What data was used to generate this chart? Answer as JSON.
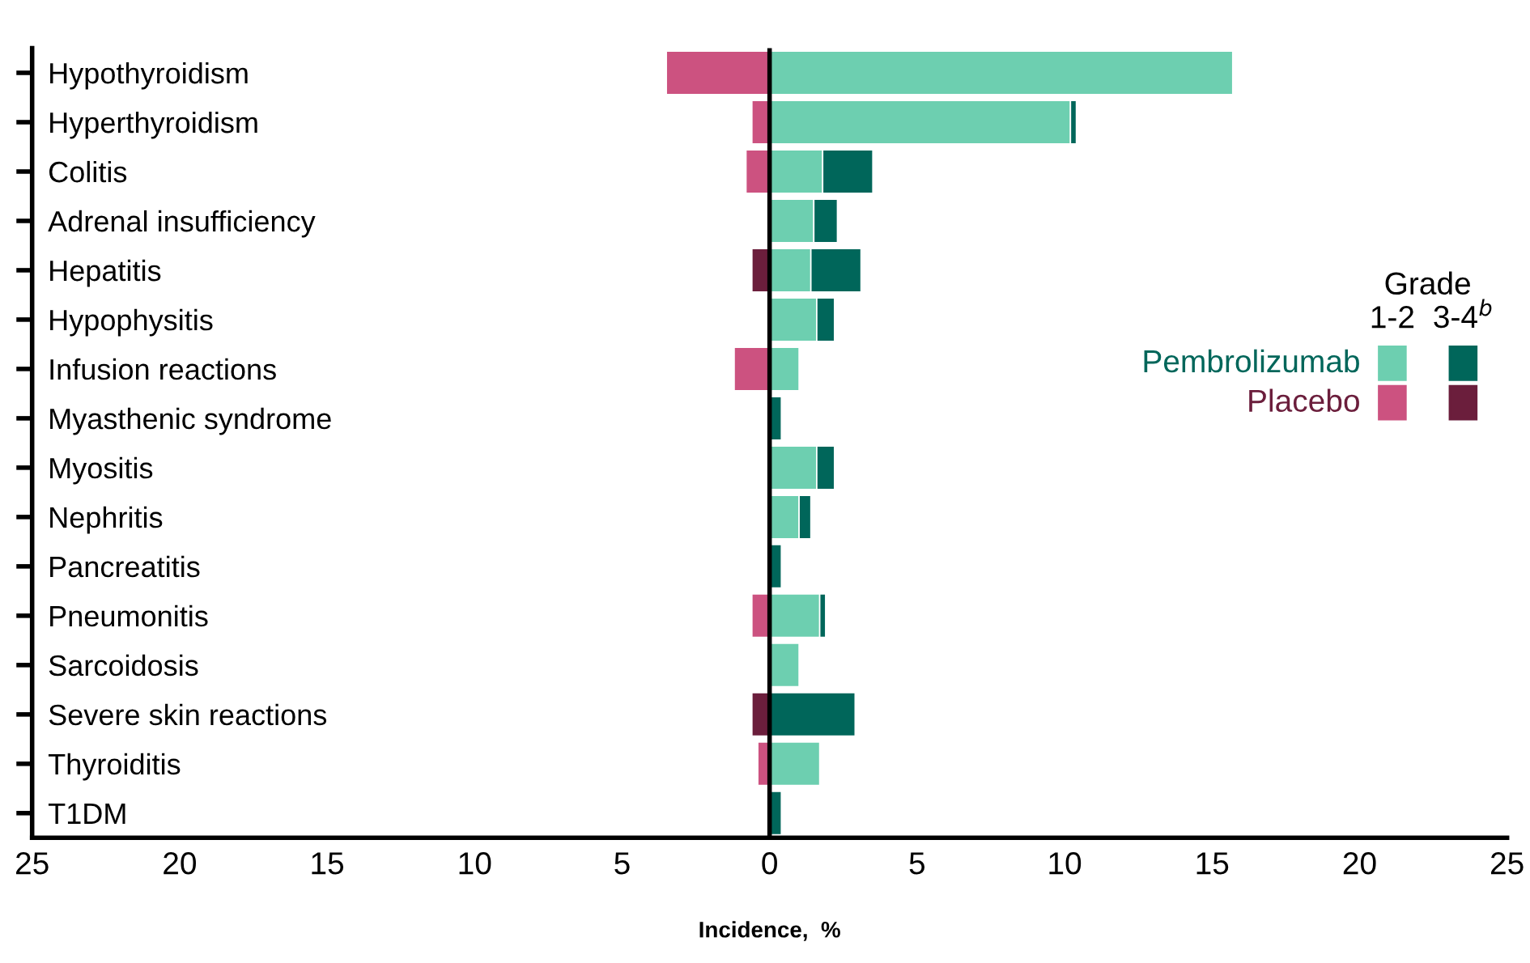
{
  "chart_data": {
    "type": "bar",
    "orientation": "horizontal",
    "stacked": true,
    "categories": [
      "Hypothyroidism",
      "Hyperthyroidism",
      "Colitis",
      "Adrenal insufficiency",
      "Hepatitis",
      "Hypophysitis",
      "Infusion reactions",
      "Myasthenic syndrome",
      "Myositis",
      "Nephritis",
      "Pancreatitis",
      "Pneumonitis",
      "Sarcoidosis",
      "Severe skin reactions",
      "Thyroiditis",
      "T1DM"
    ],
    "series": [
      {
        "name": "Pembrolizumab",
        "color": "#6dcfb0",
        "values": [
          15.7,
          10.2,
          1.8,
          1.5,
          1.4,
          1.6,
          1.0,
          null,
          1.6,
          1.0,
          null,
          1.7,
          1.0,
          null,
          1.7,
          null
        ]
      },
      {
        "color": "#00665a",
        "values": [
          null,
          0.2,
          1.7,
          0.8,
          1.7,
          0.6,
          null,
          0.4,
          0.6,
          0.4,
          0.4,
          0.2,
          null,
          2.9,
          null,
          0.4
        ]
      },
      {
        "name": "Placebo",
        "color": "#cc5280",
        "values": [
          -3.5,
          -0.6,
          -0.8,
          null,
          null,
          null,
          -1.2,
          null,
          null,
          null,
          null,
          -0.6,
          null,
          null,
          -0.4,
          null
        ]
      },
      {
        "color": "#6b1e3c",
        "values": [
          null,
          null,
          null,
          null,
          -0.6,
          null,
          null,
          null,
          null,
          null,
          null,
          null,
          null,
          -0.6,
          null,
          null
        ]
      }
    ],
    "xlim": [
      -25,
      25
    ],
    "xticks": [
      {
        "value": -25,
        "label": "25"
      },
      {
        "value": -20,
        "label": "20"
      },
      {
        "value": -15,
        "label": "15"
      },
      {
        "value": -10,
        "label": "10"
      },
      {
        "value": -5,
        "label": "5"
      },
      0,
      5,
      10,
      15,
      20,
      25
    ],
    "xlabel": "Incidence,  %",
    "legend_title": "Grade",
    "annotations": [
      "1-2",
      "3-4$^{b}$"
    ],
    "ref_lines": [
      {
        "axis": "x",
        "value": 0,
        "color": "#000000"
      }
    ],
    "legend": "right",
    "grid": false
  }
}
